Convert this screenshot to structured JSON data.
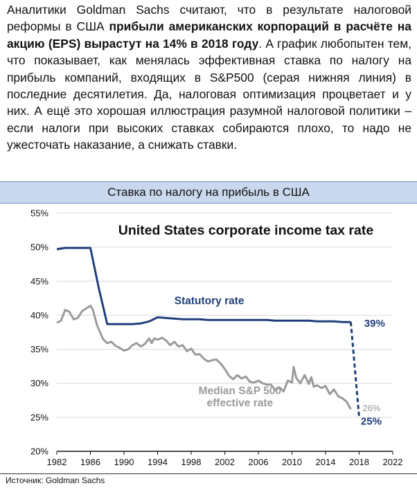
{
  "intro": {
    "p1": "Аналитики Goldman Sachs считают, что в результате налоговой реформы в США ",
    "bold": "прибыли американских корпораций в расчёте на акцию (EPS) вырастут на 14% в 2018 году",
    "p2": ". А график любопытен тем, что показывает, как менялась эффективная ставка по налогу на прибыль компаний, входящих в S&P500 (серая нижняя линия) в последние десятилетия. Да, налоговая оптимизация процветает и у них. А ещё это хорошая иллюстрация разумной налоговой политики – если налоги при высоких ставках собираются плохо, то надо не ужесточать наказание, а снижать ставки."
  },
  "banner": "Ставка по налогу на прибыль в США",
  "source": "Источник: Goldman Sachs",
  "colors": {
    "statutory": "#1f3e7a",
    "effective": "#9a9a9a",
    "banner_bg": "#c9d8ec"
  },
  "chart_data": {
    "type": "line",
    "title": "United States corporate income tax rate",
    "xlim": [
      1982,
      2022
    ],
    "ylim": [
      20,
      55
    ],
    "xticks": [
      "1982",
      "1986",
      "1990",
      "1994",
      "1998",
      "2002",
      "2006",
      "2010",
      "2014",
      "2018",
      "2022"
    ],
    "yticks": [
      "20%",
      "25%",
      "30%",
      "35%",
      "40%",
      "45%",
      "50%",
      "55%"
    ],
    "series": [
      {
        "name": "Statutory rate",
        "end_label": "39%",
        "projected_label": "25%",
        "points": [
          [
            1982,
            49.7
          ],
          [
            1983,
            49.9
          ],
          [
            1984,
            49.9
          ],
          [
            1985,
            49.9
          ],
          [
            1986,
            49.9
          ],
          [
            1987,
            44
          ],
          [
            1988,
            38.7
          ],
          [
            1989,
            38.7
          ],
          [
            1990,
            38.7
          ],
          [
            1991,
            38.7
          ],
          [
            1992,
            38.8
          ],
          [
            1993,
            39.1
          ],
          [
            1994,
            39.7
          ],
          [
            1995,
            39.6
          ],
          [
            1996,
            39.5
          ],
          [
            1997,
            39.4
          ],
          [
            1998,
            39.4
          ],
          [
            1999,
            39.4
          ],
          [
            2000,
            39.3
          ],
          [
            2001,
            39.3
          ],
          [
            2002,
            39.3
          ],
          [
            2003,
            39.3
          ],
          [
            2004,
            39.3
          ],
          [
            2005,
            39.3
          ],
          [
            2006,
            39.3
          ],
          [
            2007,
            39.3
          ],
          [
            2008,
            39.2
          ],
          [
            2009,
            39.2
          ],
          [
            2010,
            39.2
          ],
          [
            2011,
            39.2
          ],
          [
            2012,
            39.2
          ],
          [
            2013,
            39.1
          ],
          [
            2014,
            39.1
          ],
          [
            2015,
            39.1
          ],
          [
            2016,
            39.0
          ],
          [
            2017,
            39.0
          ]
        ],
        "projection": [
          [
            2017,
            39.0
          ],
          [
            2018,
            25.0
          ]
        ]
      },
      {
        "name": "Median S&P 500 effective rate",
        "end_label": "26%",
        "points": [
          [
            1982,
            38.9
          ],
          [
            1982.5,
            39.2
          ],
          [
            1983,
            40.8
          ],
          [
            1983.5,
            40.5
          ],
          [
            1984,
            39.4
          ],
          [
            1984.5,
            39.6
          ],
          [
            1985,
            40.6
          ],
          [
            1985.5,
            41.0
          ],
          [
            1986,
            41.4
          ],
          [
            1986.3,
            40.8
          ],
          [
            1986.8,
            38.5
          ],
          [
            1987.5,
            36.5
          ],
          [
            1988,
            35.9
          ],
          [
            1988.5,
            36.1
          ],
          [
            1989,
            35.5
          ],
          [
            1989.5,
            35.2
          ],
          [
            1990,
            34.8
          ],
          [
            1990.5,
            35.0
          ],
          [
            1991,
            35.6
          ],
          [
            1991.5,
            35.9
          ],
          [
            1992,
            35.4
          ],
          [
            1992.5,
            35.8
          ],
          [
            1993,
            36.6
          ],
          [
            1993.3,
            35.9
          ],
          [
            1993.6,
            36.6
          ],
          [
            1994,
            36.4
          ],
          [
            1994.5,
            36.7
          ],
          [
            1995,
            36.3
          ],
          [
            1995.5,
            35.6
          ],
          [
            1996,
            36.1
          ],
          [
            1996.5,
            35.4
          ],
          [
            1997,
            35.6
          ],
          [
            1997.5,
            34.7
          ],
          [
            1998,
            35.1
          ],
          [
            1998.5,
            34.2
          ],
          [
            1999,
            34.3
          ],
          [
            1999.5,
            33.6
          ],
          [
            2000,
            33.2
          ],
          [
            2000.5,
            33.4
          ],
          [
            2001,
            33.5
          ],
          [
            2001.5,
            32.9
          ],
          [
            2002,
            32.1
          ],
          [
            2002.5,
            31.1
          ],
          [
            2003,
            30.6
          ],
          [
            2003.5,
            31.2
          ],
          [
            2004,
            30.7
          ],
          [
            2004.5,
            31.0
          ],
          [
            2005,
            30.2
          ],
          [
            2005.5,
            30.1
          ],
          [
            2006,
            30.4
          ],
          [
            2006.5,
            30.0
          ],
          [
            2007,
            29.8
          ],
          [
            2007.5,
            29.8
          ],
          [
            2008,
            29.0
          ],
          [
            2008.5,
            29.4
          ],
          [
            2009,
            28.8
          ],
          [
            2009.5,
            30.4
          ],
          [
            2010,
            30.1
          ],
          [
            2010.2,
            32.4
          ],
          [
            2010.5,
            30.8
          ],
          [
            2011,
            30.0
          ],
          [
            2011.5,
            31.2
          ],
          [
            2012,
            29.9
          ],
          [
            2012.3,
            30.9
          ],
          [
            2012.6,
            29.5
          ],
          [
            2013,
            29.7
          ],
          [
            2013.5,
            29.3
          ],
          [
            2014,
            29.6
          ],
          [
            2014.5,
            28.4
          ],
          [
            2015,
            29.1
          ],
          [
            2015.5,
            28.1
          ],
          [
            2016,
            27.8
          ],
          [
            2016.5,
            27.3
          ],
          [
            2017,
            26.2
          ]
        ]
      }
    ]
  }
}
